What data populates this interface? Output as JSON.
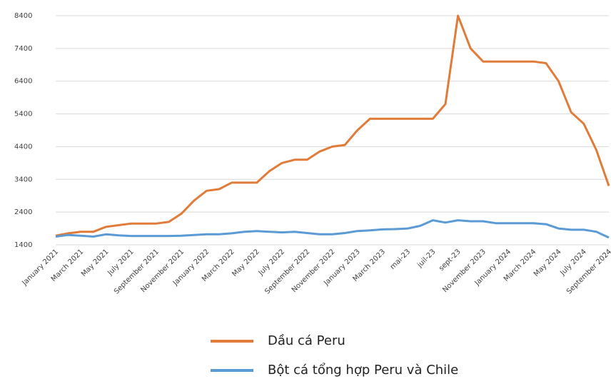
{
  "chart_data": {
    "type": "line",
    "categories": [
      "January 2021",
      null,
      "March 2021",
      null,
      "May 2021",
      null,
      "July 2021",
      null,
      "September 2021",
      null,
      "November 2021",
      null,
      "January 2022",
      null,
      "March 2022",
      null,
      "May 2022",
      null,
      "July 2022",
      null,
      "September 2022",
      null,
      "November 2022",
      null,
      "January 2023",
      null,
      "March 2023",
      null,
      "mai-23",
      null,
      "juil-23",
      null,
      "sept-23",
      null,
      "November 2023",
      null,
      "January 2024",
      null,
      "March 2024",
      null,
      "May 2024",
      null,
      "July 2024",
      null,
      "September 2024"
    ],
    "series": [
      {
        "name": "Dầu cá Peru",
        "color": "#e07b39",
        "values": [
          1680,
          1750,
          1800,
          1800,
          1950,
          2000,
          2050,
          2050,
          2050,
          2100,
          2350,
          2750,
          3050,
          3100,
          3300,
          3300,
          3300,
          3650,
          3900,
          4000,
          4000,
          4250,
          4400,
          4450,
          4900,
          5250,
          5250,
          5250,
          5250,
          5250,
          5250,
          5700,
          8400,
          7400,
          7000,
          7000,
          7000,
          7000,
          7000,
          6950,
          6400,
          5450,
          5100,
          4300,
          3200
        ]
      },
      {
        "name": "Bột cá tổng hợp Peru và Chile",
        "color": "#5b9bd5",
        "values": [
          1650,
          1700,
          1680,
          1650,
          1720,
          1690,
          1670,
          1670,
          1670,
          1670,
          1680,
          1700,
          1720,
          1720,
          1750,
          1800,
          1820,
          1800,
          1780,
          1800,
          1760,
          1720,
          1720,
          1760,
          1820,
          1840,
          1870,
          1880,
          1900,
          1980,
          2150,
          2080,
          2150,
          2120,
          2120,
          2060,
          2060,
          2060,
          2060,
          2030,
          1900,
          1860,
          1860,
          1800,
          1620
        ]
      }
    ],
    "ylim": [
      1400,
      8400
    ],
    "yticks": [
      1400,
      2400,
      3400,
      4400,
      5400,
      6400,
      7400,
      8400
    ],
    "grid": true
  }
}
